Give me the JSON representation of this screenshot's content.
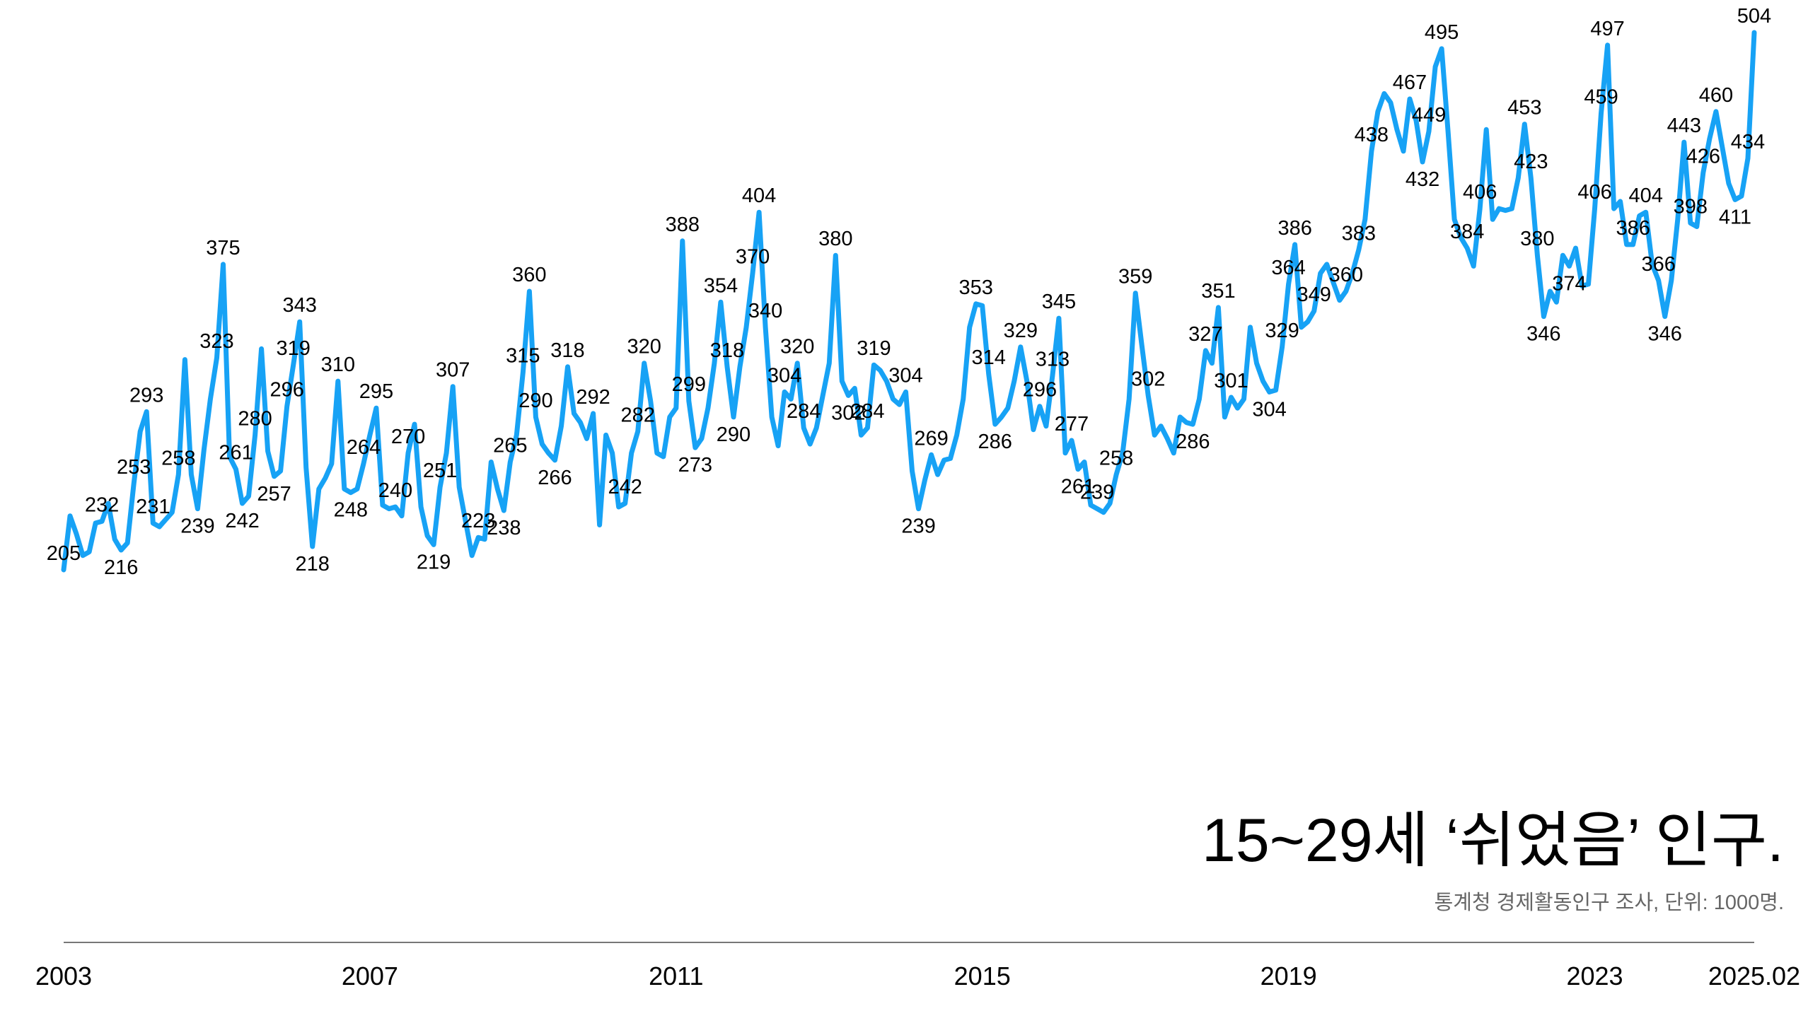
{
  "chart_data": {
    "type": "line",
    "title": "15~29세 ‘쉬었음’ 인구.",
    "subtitle": "통계청 경제활동인구 조사, 단위: 1000명.",
    "color": "#17a2f5",
    "categories": [
      "2003",
      null,
      null,
      null,
      null,
      null,
      null,
      null,
      null,
      null,
      null,
      null,
      null,
      null,
      null,
      null,
      null,
      null,
      null,
      null,
      null,
      null,
      null,
      null,
      null,
      null,
      null,
      null,
      null,
      null,
      null,
      null,
      null,
      null,
      null,
      null,
      null,
      null,
      null,
      null,
      null,
      null,
      null,
      null,
      null,
      null,
      null,
      null,
      "2007",
      null,
      null,
      null,
      null,
      null,
      null,
      null,
      null,
      null,
      null,
      null,
      null,
      null,
      null,
      null,
      null,
      null,
      null,
      null,
      null,
      null,
      null,
      null,
      null,
      null,
      null,
      null,
      null,
      null,
      null,
      null,
      null,
      null,
      null,
      null,
      null,
      null,
      null,
      null,
      null,
      null,
      null,
      null,
      null,
      null,
      null,
      null,
      "2011",
      null,
      null,
      null,
      null,
      null,
      null,
      null,
      null,
      null,
      null,
      null,
      null,
      null,
      null,
      null,
      null,
      null,
      null,
      null,
      null,
      null,
      null,
      null,
      null,
      null,
      null,
      null,
      null,
      null,
      null,
      null,
      null,
      null,
      null,
      null,
      null,
      null,
      null,
      null,
      null,
      null,
      null,
      null,
      null,
      null,
      null,
      null,
      "2015",
      null,
      null,
      null,
      null,
      null,
      null,
      null,
      null,
      null,
      null,
      null,
      null,
      null,
      null,
      null,
      null,
      null,
      null,
      null,
      null,
      null,
      null,
      null,
      null,
      null,
      null,
      null,
      null,
      null,
      null,
      null,
      null,
      null,
      null,
      null,
      null,
      null,
      null,
      null,
      null,
      null,
      null,
      null,
      null,
      null,
      null,
      null,
      "2019",
      null,
      null,
      null,
      null,
      null,
      null,
      null,
      null,
      null,
      null,
      null,
      null,
      null,
      null,
      null,
      null,
      null,
      null,
      null,
      null,
      null,
      null,
      null,
      null,
      null,
      null,
      null,
      null,
      null,
      null,
      null,
      null,
      null,
      null,
      null,
      null,
      null,
      null,
      null,
      null,
      null,
      null,
      null,
      null,
      null,
      null,
      null,
      "2023",
      null,
      null,
      null,
      null,
      null,
      null,
      null,
      null,
      null,
      null,
      null,
      null,
      null,
      null,
      null,
      null,
      null,
      null,
      null,
      null,
      null,
      null,
      null,
      null,
      "2025.02"
    ],
    "values": [
      205,
      235,
      225,
      213,
      215,
      231,
      232,
      242,
      222,
      216,
      220,
      253,
      282,
      293,
      231,
      229,
      233,
      237,
      258,
      322,
      258,
      239,
      272,
      300,
      323,
      375,
      268,
      261,
      242,
      246,
      280,
      328,
      271,
      257,
      260,
      296,
      319,
      343,
      262,
      218,
      250,
      256,
      264,
      310,
      250,
      248,
      250,
      264,
      280,
      295,
      241,
      239,
      240,
      235,
      270,
      286,
      240,
      224,
      219,
      251,
      270,
      307,
      251,
      232,
      213,
      223,
      222,
      265,
      250,
      238,
      265,
      280,
      315,
      360,
      290,
      275,
      270,
      266,
      285,
      318,
      292,
      287,
      278,
      292,
      230,
      280,
      270,
      240,
      242,
      270,
      282,
      320,
      299,
      270,
      268,
      290,
      295,
      388,
      299,
      273,
      278,
      295,
      320,
      354,
      318,
      290,
      318,
      340,
      370,
      404,
      340,
      290,
      274,
      304,
      300,
      320,
      284,
      275,
      284,
      302,
      320,
      380,
      310,
      302,
      306,
      280,
      284,
      319,
      316,
      310,
      300,
      297,
      304,
      260,
      239,
      255,
      269,
      258,
      266,
      267,
      280,
      300,
      340,
      353,
      352,
      314,
      286,
      290,
      295,
      310,
      329,
      310,
      283,
      296,
      285,
      313,
      345,
      270,
      277,
      261,
      265,
      241,
      239,
      237,
      242,
      258,
      270,
      300,
      359,
      330,
      302,
      280,
      285,
      278,
      270,
      290,
      287,
      286,
      300,
      327,
      320,
      351,
      290,
      301,
      295,
      300,
      340,
      320,
      310,
      304,
      305,
      329,
      364,
      386,
      340,
      343,
      349,
      370,
      375,
      365,
      355,
      360,
      370,
      383,
      400,
      438,
      460,
      470,
      465,
      450,
      438,
      467,
      455,
      432,
      449,
      485,
      495,
      449,
      400,
      390,
      384,
      374,
      406,
      450,
      400,
      406,
      405,
      406,
      423,
      453,
      423,
      380,
      346,
      360,
      354,
      380,
      374,
      384,
      363,
      364,
      406,
      459,
      497,
      406,
      410,
      386,
      386,
      402,
      404,
      375,
      366,
      346,
      366,
      400,
      443,
      398,
      396,
      426,
      445,
      460,
      440,
      420,
      411,
      413,
      434,
      504
    ],
    "value_labels": [
      "205",
      null,
      null,
      null,
      null,
      null,
      "232",
      null,
      null,
      "216",
      null,
      "253",
      null,
      "293",
      "231",
      null,
      null,
      null,
      "258",
      null,
      null,
      "239",
      null,
      null,
      "323",
      "375",
      null,
      "261",
      "242",
      null,
      "280",
      null,
      null,
      "257",
      null,
      "296",
      "319",
      "343",
      null,
      "218",
      null,
      null,
      null,
      "310",
      null,
      "248",
      null,
      "264",
      null,
      "295",
      null,
      null,
      "240",
      null,
      "270",
      null,
      null,
      null,
      "219",
      "251",
      null,
      "307",
      null,
      null,
      null,
      "223",
      null,
      null,
      null,
      "238",
      "265",
      null,
      "315",
      "360",
      "290",
      null,
      null,
      "266",
      null,
      "318",
      null,
      null,
      null,
      "292",
      null,
      null,
      null,
      null,
      "242",
      null,
      "282",
      "320",
      null,
      null,
      null,
      null,
      null,
      "388",
      "299",
      "273",
      null,
      null,
      null,
      "354",
      "318",
      "290",
      null,
      null,
      "370",
      "404",
      "340",
      null,
      null,
      "304",
      null,
      "320",
      "284",
      null,
      null,
      null,
      null,
      "380",
      null,
      "302",
      null,
      null,
      "284",
      "319",
      null,
      null,
      null,
      null,
      "304",
      null,
      "239",
      null,
      "269",
      null,
      null,
      null,
      null,
      null,
      null,
      "353",
      null,
      "314",
      "286",
      null,
      null,
      null,
      "329",
      null,
      null,
      "296",
      null,
      "313",
      "345",
      null,
      "277",
      "261",
      null,
      null,
      "239",
      null,
      null,
      "258",
      null,
      null,
      "359",
      null,
      "302",
      null,
      null,
      null,
      null,
      null,
      null,
      "286",
      null,
      "327",
      null,
      "351",
      null,
      "301",
      null,
      null,
      null,
      null,
      null,
      "304",
      null,
      "329",
      "364",
      "386",
      null,
      null,
      "349",
      null,
      null,
      null,
      null,
      "360",
      null,
      "383",
      null,
      "438",
      null,
      null,
      null,
      null,
      null,
      "467",
      null,
      "432",
      "449",
      null,
      "495",
      null,
      null,
      null,
      "384",
      null,
      "406",
      null,
      null,
      null,
      null,
      null,
      null,
      "453",
      "423",
      "380",
      "346",
      null,
      null,
      null,
      "374",
      null,
      null,
      null,
      "406",
      "459",
      "497",
      null,
      null,
      null,
      "386",
      null,
      "404",
      null,
      "366",
      "346",
      null,
      null,
      "443",
      "398",
      null,
      "426",
      null,
      "460",
      null,
      null,
      "411",
      null,
      "434",
      "504"
    ]
  }
}
